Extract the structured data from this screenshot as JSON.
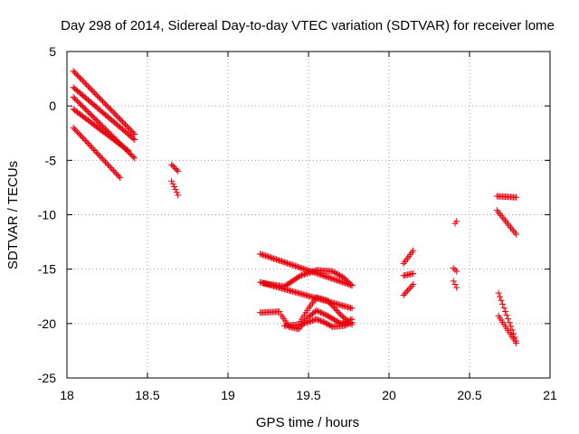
{
  "chart_data": {
    "type": "scatter",
    "title": "Day 298 of 2014, Sidereal Day-to-day VTEC variation (SDTVAR) for receiver lome",
    "xlabel": "GPS time / hours",
    "ylabel": "SDTVAR / TECUs",
    "xlim": [
      18,
      21
    ],
    "ylim": [
      -25,
      5
    ],
    "x_ticks": [
      18,
      18.5,
      19,
      19.5,
      20,
      20.5,
      21
    ],
    "x_tick_labels": [
      "18",
      "18.5",
      "19",
      "19.5",
      "20",
      "20.5",
      "21"
    ],
    "y_ticks": [
      5,
      0,
      -5,
      -10,
      -15,
      -20,
      -25
    ],
    "y_tick_labels": [
      "5",
      "0",
      "-5",
      "-10",
      "-15",
      "-20",
      "-25"
    ],
    "grid": true,
    "marker": "+",
    "marker_color": "#e8000b",
    "segments": [
      {
        "name": "s1",
        "x": [
          18.04,
          18.42
        ],
        "y": [
          3.2,
          -2.6
        ]
      },
      {
        "name": "s2",
        "x": [
          18.04,
          18.42
        ],
        "y": [
          1.7,
          -3.1
        ]
      },
      {
        "name": "s3",
        "x": [
          18.04,
          18.42
        ],
        "y": [
          0.8,
          -4.8
        ]
      },
      {
        "name": "s4",
        "x": [
          18.04,
          18.38
        ],
        "y": [
          -0.3,
          -4.1
        ]
      },
      {
        "name": "s5",
        "x": [
          18.04,
          18.33
        ],
        "y": [
          -2.0,
          -6.6
        ]
      },
      {
        "name": "s6",
        "x": [
          18.65,
          18.69
        ],
        "y": [
          -5.4,
          -6.0
        ]
      },
      {
        "name": "s7",
        "x": [
          18.65,
          18.69
        ],
        "y": [
          -6.9,
          -8.2
        ]
      },
      {
        "name": "s8",
        "x": [
          19.2,
          19.77
        ],
        "y": [
          -13.6,
          -16.5
        ]
      },
      {
        "name": "s9",
        "x": [
          19.2,
          19.77
        ],
        "y": [
          -16.2,
          -18.6
        ]
      },
      {
        "name": "s10",
        "x": [
          19.2,
          19.32
        ],
        "y": [
          -19.0,
          -18.9
        ]
      },
      {
        "name": "s11",
        "x": [
          20.09,
          20.15
        ],
        "y": [
          -14.5,
          -13.3
        ]
      },
      {
        "name": "s12",
        "x": [
          20.09,
          20.15
        ],
        "y": [
          -15.6,
          -15.4
        ]
      },
      {
        "name": "s13",
        "x": [
          20.09,
          20.15
        ],
        "y": [
          -17.4,
          -16.4
        ]
      },
      {
        "name": "s14",
        "x": [
          20.41,
          20.42
        ],
        "y": [
          -10.8,
          -10.6
        ]
      },
      {
        "name": "s15",
        "x": [
          20.4,
          20.42
        ],
        "y": [
          -14.9,
          -15.2
        ]
      },
      {
        "name": "s16",
        "x": [
          20.4,
          20.42
        ],
        "y": [
          -16.1,
          -16.7
        ]
      },
      {
        "name": "s17",
        "x": [
          20.67,
          20.79
        ],
        "y": [
          -8.3,
          -8.4
        ]
      },
      {
        "name": "s18",
        "x": [
          20.67,
          20.79
        ],
        "y": [
          -9.6,
          -11.8
        ]
      },
      {
        "name": "s19",
        "x": [
          20.68,
          20.79
        ],
        "y": [
          -17.2,
          -21.6
        ]
      },
      {
        "name": "s20",
        "x": [
          20.68,
          20.79
        ],
        "y": [
          -19.3,
          -21.8
        ]
      }
    ],
    "curves": [
      {
        "name": "c1",
        "x": [
          19.22,
          19.35,
          19.45,
          19.55,
          19.65,
          19.72,
          19.77
        ],
        "y": [
          -16.3,
          -16.6,
          -15.6,
          -15.1,
          -15.2,
          -15.8,
          -16.5
        ]
      },
      {
        "name": "c2",
        "x": [
          19.33,
          19.38,
          19.44,
          19.5,
          19.55,
          19.62,
          19.7,
          19.77
        ],
        "y": [
          -19.2,
          -20.3,
          -20.5,
          -19.4,
          -18.8,
          -19.3,
          -20.0,
          -19.6
        ]
      },
      {
        "name": "c3",
        "x": [
          19.45,
          19.5,
          19.55,
          19.62,
          19.7,
          19.77
        ],
        "y": [
          -19.8,
          -18.6,
          -17.6,
          -17.9,
          -19.2,
          -20.1
        ]
      },
      {
        "name": "c4",
        "x": [
          19.35,
          19.45,
          19.55,
          19.6,
          19.65,
          19.72,
          19.77
        ],
        "y": [
          -20.2,
          -20.1,
          -19.6,
          -19.9,
          -20.3,
          -20.2,
          -19.9
        ]
      }
    ]
  }
}
